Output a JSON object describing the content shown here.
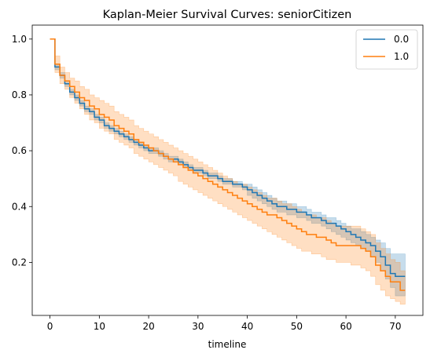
{
  "chart_data": {
    "type": "line",
    "step": true,
    "title": "Kaplan-Meier Survival Curves: seniorCitizen",
    "xlabel": "timeline",
    "ylabel": "",
    "xlim": [
      -3.6,
      75.6
    ],
    "ylim": [
      0.01,
      1.05
    ],
    "xticks": [
      0,
      10,
      20,
      30,
      40,
      50,
      60,
      70
    ],
    "yticks": [
      0.2,
      0.4,
      0.6,
      0.8,
      1.0
    ],
    "ytick_labels": [
      "0.2",
      "0.4",
      "0.6",
      "0.8",
      "1.0"
    ],
    "grid": false,
    "legend_position": "top-right",
    "series": [
      {
        "name": "0.0",
        "color": "#1f77b4",
        "x": [
          0,
          1,
          2,
          3,
          4,
          5,
          6,
          7,
          8,
          9,
          10,
          11,
          12,
          13,
          14,
          15,
          16,
          17,
          18,
          19,
          20,
          21,
          22,
          23,
          24,
          25,
          26,
          27,
          28,
          29,
          30,
          31,
          32,
          33,
          34,
          35,
          36,
          37,
          38,
          39,
          40,
          41,
          42,
          43,
          44,
          45,
          46,
          47,
          48,
          49,
          50,
          51,
          52,
          53,
          54,
          55,
          56,
          57,
          58,
          59,
          60,
          61,
          62,
          63,
          64,
          65,
          66,
          67,
          68,
          69,
          70,
          71,
          72
        ],
        "y": [
          1.0,
          0.9,
          0.87,
          0.84,
          0.81,
          0.79,
          0.77,
          0.75,
          0.74,
          0.72,
          0.71,
          0.69,
          0.68,
          0.67,
          0.66,
          0.65,
          0.64,
          0.63,
          0.62,
          0.61,
          0.6,
          0.6,
          0.59,
          0.58,
          0.57,
          0.57,
          0.56,
          0.55,
          0.54,
          0.53,
          0.53,
          0.52,
          0.51,
          0.51,
          0.5,
          0.49,
          0.49,
          0.48,
          0.48,
          0.47,
          0.46,
          0.45,
          0.44,
          0.43,
          0.42,
          0.41,
          0.4,
          0.4,
          0.39,
          0.39,
          0.38,
          0.38,
          0.37,
          0.36,
          0.36,
          0.35,
          0.34,
          0.34,
          0.33,
          0.32,
          0.31,
          0.3,
          0.29,
          0.28,
          0.27,
          0.26,
          0.24,
          0.22,
          0.19,
          0.16,
          0.15,
          0.15,
          0.15
        ],
        "ci_lower": [
          1.0,
          0.89,
          0.86,
          0.83,
          0.8,
          0.78,
          0.76,
          0.74,
          0.73,
          0.71,
          0.7,
          0.68,
          0.67,
          0.66,
          0.65,
          0.64,
          0.63,
          0.62,
          0.61,
          0.6,
          0.59,
          0.59,
          0.58,
          0.57,
          0.56,
          0.56,
          0.55,
          0.54,
          0.53,
          0.52,
          0.52,
          0.51,
          0.5,
          0.5,
          0.49,
          0.48,
          0.48,
          0.47,
          0.47,
          0.46,
          0.44,
          0.43,
          0.42,
          0.41,
          0.4,
          0.39,
          0.38,
          0.38,
          0.37,
          0.37,
          0.36,
          0.36,
          0.35,
          0.34,
          0.34,
          0.33,
          0.32,
          0.31,
          0.3,
          0.29,
          0.28,
          0.27,
          0.26,
          0.25,
          0.24,
          0.22,
          0.2,
          0.17,
          0.14,
          0.11,
          0.08,
          0.08,
          0.08
        ],
        "ci_upper": [
          1.0,
          0.91,
          0.88,
          0.85,
          0.82,
          0.8,
          0.78,
          0.76,
          0.75,
          0.73,
          0.72,
          0.7,
          0.69,
          0.68,
          0.67,
          0.66,
          0.65,
          0.64,
          0.63,
          0.62,
          0.61,
          0.61,
          0.6,
          0.59,
          0.58,
          0.58,
          0.57,
          0.56,
          0.55,
          0.54,
          0.54,
          0.53,
          0.52,
          0.52,
          0.51,
          0.5,
          0.5,
          0.49,
          0.49,
          0.48,
          0.48,
          0.47,
          0.46,
          0.45,
          0.44,
          0.43,
          0.42,
          0.42,
          0.41,
          0.41,
          0.4,
          0.4,
          0.39,
          0.38,
          0.38,
          0.37,
          0.36,
          0.36,
          0.35,
          0.34,
          0.33,
          0.32,
          0.32,
          0.31,
          0.3,
          0.29,
          0.28,
          0.27,
          0.25,
          0.23,
          0.23,
          0.23,
          0.23
        ]
      },
      {
        "name": "1.0",
        "color": "#ff7f0e",
        "x": [
          0,
          1,
          2,
          3,
          4,
          5,
          6,
          7,
          8,
          9,
          10,
          11,
          12,
          13,
          14,
          15,
          16,
          17,
          18,
          19,
          20,
          21,
          22,
          23,
          24,
          25,
          26,
          27,
          28,
          29,
          30,
          31,
          32,
          33,
          34,
          35,
          36,
          37,
          38,
          39,
          40,
          41,
          42,
          43,
          44,
          45,
          46,
          47,
          48,
          49,
          50,
          51,
          52,
          53,
          54,
          55,
          56,
          57,
          58,
          59,
          60,
          61,
          62,
          63,
          64,
          65,
          66,
          67,
          68,
          69,
          70,
          71,
          72
        ],
        "y": [
          1.0,
          0.91,
          0.87,
          0.85,
          0.83,
          0.81,
          0.79,
          0.78,
          0.76,
          0.75,
          0.73,
          0.72,
          0.71,
          0.69,
          0.68,
          0.67,
          0.66,
          0.64,
          0.63,
          0.62,
          0.61,
          0.6,
          0.59,
          0.58,
          0.57,
          0.56,
          0.55,
          0.54,
          0.53,
          0.52,
          0.51,
          0.5,
          0.49,
          0.48,
          0.47,
          0.46,
          0.45,
          0.44,
          0.43,
          0.42,
          0.41,
          0.4,
          0.39,
          0.38,
          0.37,
          0.37,
          0.36,
          0.35,
          0.34,
          0.33,
          0.32,
          0.31,
          0.3,
          0.3,
          0.29,
          0.29,
          0.28,
          0.27,
          0.26,
          0.26,
          0.26,
          0.26,
          0.26,
          0.25,
          0.24,
          0.22,
          0.19,
          0.17,
          0.15,
          0.13,
          0.13,
          0.1,
          0.1
        ],
        "ci_lower": [
          1.0,
          0.88,
          0.84,
          0.82,
          0.79,
          0.77,
          0.75,
          0.73,
          0.71,
          0.7,
          0.68,
          0.67,
          0.66,
          0.64,
          0.63,
          0.62,
          0.61,
          0.59,
          0.58,
          0.57,
          0.56,
          0.55,
          0.54,
          0.53,
          0.52,
          0.51,
          0.49,
          0.48,
          0.47,
          0.46,
          0.45,
          0.44,
          0.43,
          0.42,
          0.41,
          0.4,
          0.39,
          0.38,
          0.37,
          0.36,
          0.35,
          0.34,
          0.33,
          0.32,
          0.31,
          0.3,
          0.29,
          0.28,
          0.27,
          0.26,
          0.25,
          0.24,
          0.24,
          0.23,
          0.23,
          0.22,
          0.21,
          0.21,
          0.2,
          0.2,
          0.2,
          0.19,
          0.19,
          0.18,
          0.17,
          0.15,
          0.12,
          0.1,
          0.08,
          0.07,
          0.06,
          0.05,
          0.05
        ],
        "ci_upper": [
          1.0,
          0.94,
          0.9,
          0.88,
          0.86,
          0.85,
          0.83,
          0.82,
          0.8,
          0.79,
          0.78,
          0.77,
          0.76,
          0.74,
          0.73,
          0.72,
          0.71,
          0.69,
          0.68,
          0.67,
          0.66,
          0.65,
          0.64,
          0.63,
          0.62,
          0.61,
          0.6,
          0.59,
          0.58,
          0.57,
          0.56,
          0.55,
          0.54,
          0.53,
          0.52,
          0.51,
          0.5,
          0.49,
          0.48,
          0.48,
          0.47,
          0.46,
          0.45,
          0.44,
          0.43,
          0.43,
          0.42,
          0.41,
          0.41,
          0.4,
          0.39,
          0.38,
          0.37,
          0.37,
          0.36,
          0.36,
          0.35,
          0.34,
          0.33,
          0.33,
          0.33,
          0.33,
          0.33,
          0.32,
          0.31,
          0.3,
          0.27,
          0.25,
          0.23,
          0.21,
          0.2,
          0.17,
          0.17
        ]
      }
    ]
  }
}
